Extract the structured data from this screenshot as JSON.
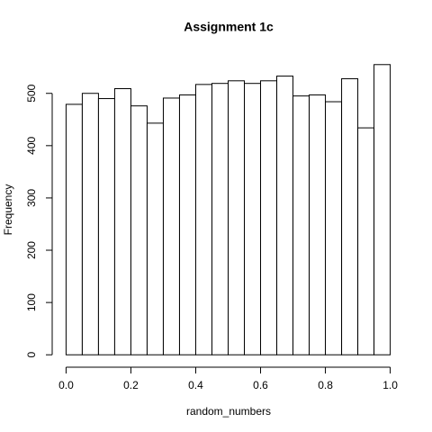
{
  "chart_data": {
    "type": "histogram",
    "title": "Assignment 1c",
    "x_label": "random_numbers",
    "y_label": "Frequency",
    "bins": [
      0,
      0.05,
      0.1,
      0.15,
      0.2,
      0.25,
      0.3,
      0.35,
      0.4,
      0.45,
      0.5,
      0.55,
      0.6,
      0.65,
      0.7,
      0.75,
      0.8,
      0.85,
      0.9,
      0.95,
      1
    ],
    "values": [
      479,
      500,
      490,
      509,
      476,
      443,
      491,
      497,
      517,
      519,
      524,
      519,
      524,
      533,
      495,
      497,
      484,
      528,
      434,
      555
    ],
    "color": "#ffffff",
    "xlim": [
      -0.04,
      1.04
    ],
    "ylim": [
      -22,
      577
    ],
    "xticks": [
      {
        "value": 0,
        "label": "0.0"
      },
      0.2,
      0.4,
      0.6,
      0.8,
      {
        "value": 1,
        "label": "1.0"
      }
    ],
    "yticks": [
      0,
      100,
      200,
      300,
      400,
      500
    ]
  }
}
